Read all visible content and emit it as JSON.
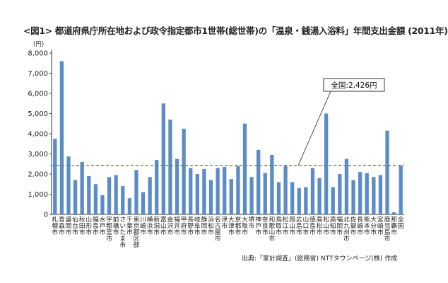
{
  "chart_data": {
    "type": "bar",
    "title": "<図1> 都道府県庁所在地および政令指定都市1世帯(総世帯)の「温泉・銭湯入浴料」年間支出金額 (2011年)",
    "yunit": "(円)",
    "ylim": [
      0,
      8000
    ],
    "yticks": [
      "0",
      "1,000",
      "2,000",
      "3,000",
      "4,000",
      "5,000",
      "6,000",
      "7,000",
      "8,000"
    ],
    "grid": false,
    "bar_color": "#5b8cc6",
    "reference_line": {
      "label": "全国:2,426円",
      "value": 2426,
      "color": "#e03c3c"
    },
    "categories": [
      "札幌市",
      "青森市",
      "盛岡市",
      "仙台市",
      "秋田市",
      "山形市",
      "福島市",
      "水戸市",
      "宇都宮市",
      "前橋市",
      "さいたま市",
      "千葉市",
      "東京都区部",
      "川崎市",
      "横浜市",
      "新潟市",
      "富山市",
      "金沢市",
      "福井市",
      "甲府市",
      "長野市",
      "岐阜市",
      "静岡市",
      "浜松市",
      "名古屋市",
      "津市",
      "大津市",
      "京都市",
      "大阪市",
      "堺市",
      "神戸市",
      "奈良市",
      "和歌山市",
      "鳥取市",
      "松江市",
      "岡山市",
      "広島市",
      "山口市",
      "徳島市",
      "高松市",
      "松山市",
      "高知市",
      "福岡市",
      "北九州市",
      "佐賀市",
      "長崎市",
      "熊本市",
      "大分市",
      "宮崎市",
      "鹿児島市",
      "那覇市",
      "全国"
    ],
    "values": [
      3750,
      7600,
      2870,
      1700,
      2600,
      1900,
      1500,
      950,
      1850,
      1950,
      1400,
      800,
      2200,
      1100,
      1850,
      2700,
      5500,
      4700,
      2750,
      4250,
      2300,
      2000,
      2250,
      1700,
      2300,
      2350,
      1750,
      2400,
      4500,
      1850,
      3200,
      2050,
      2950,
      1600,
      2400,
      1600,
      1300,
      1350,
      2300,
      1800,
      5000,
      1350,
      2000,
      2750,
      1700,
      2100,
      2050,
      1850,
      1950,
      4150,
      100,
      2426
    ],
    "source": "出典:「家計調査」(総務省)  NTTタウンページ(株) 作成"
  }
}
